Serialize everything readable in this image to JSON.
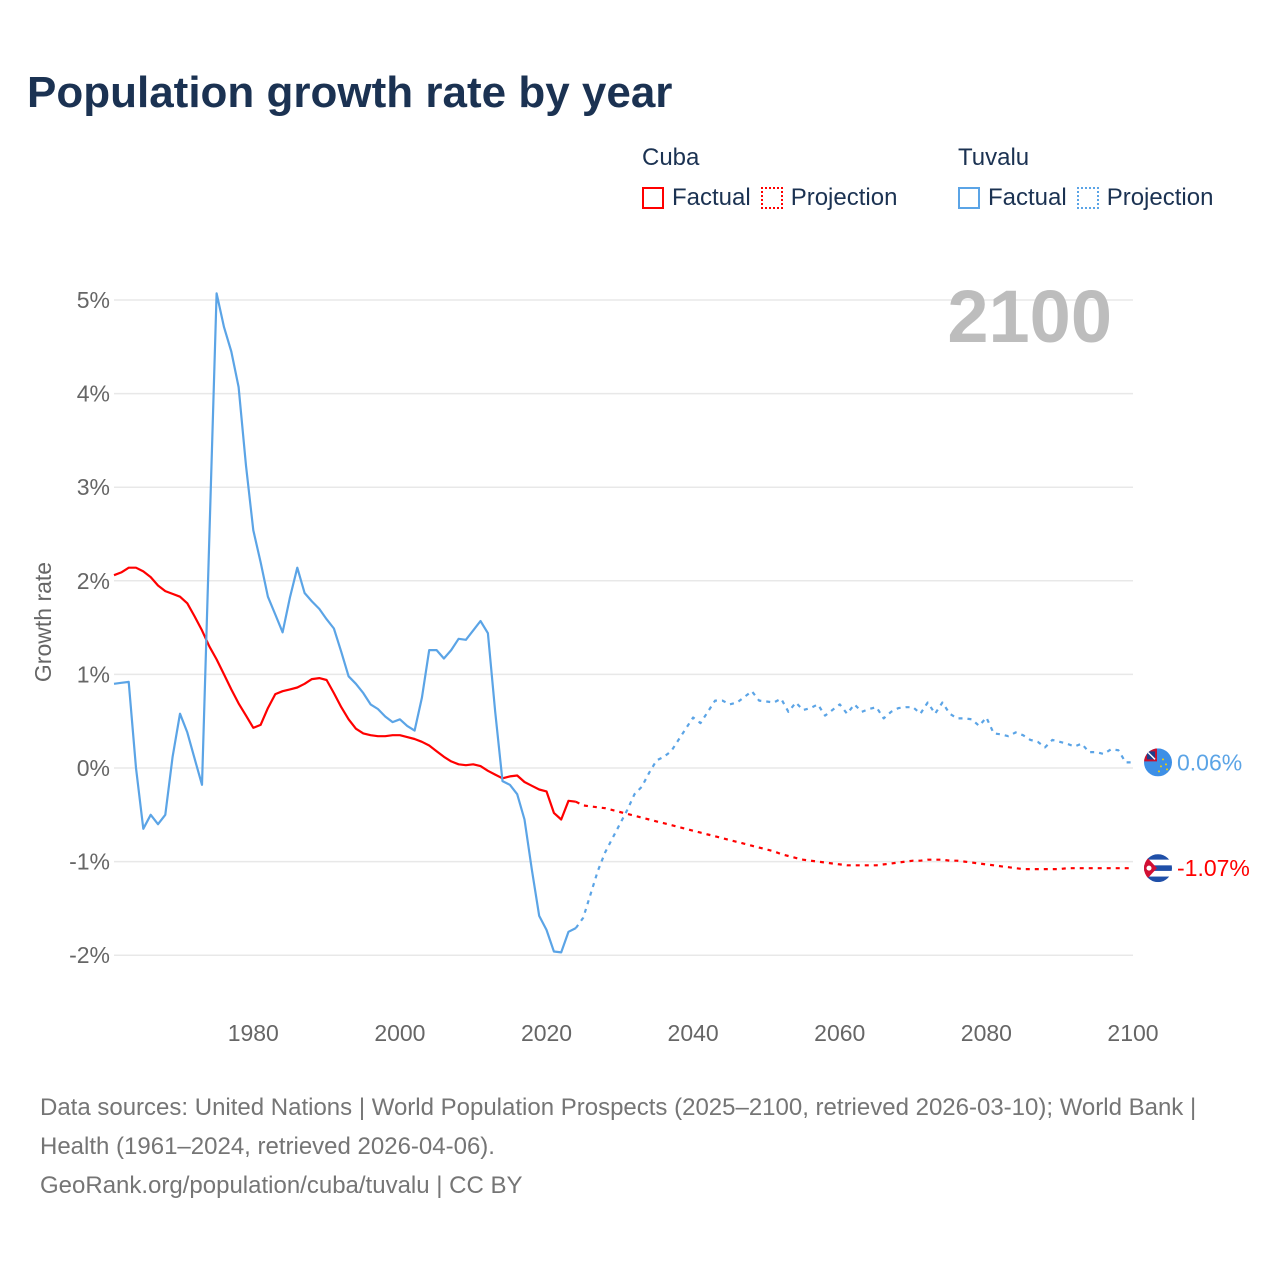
{
  "title": "Population growth rate by year",
  "legend": {
    "groups": [
      {
        "name": "Cuba",
        "color": "#ff0000",
        "items": [
          "Factual",
          "Projection"
        ]
      },
      {
        "name": "Tuvalu",
        "color": "#5ba4e6",
        "items": [
          "Factual",
          "Projection"
        ]
      }
    ]
  },
  "year_watermark": "2100",
  "footer": {
    "sources": "Data sources: United Nations | World Population Prospects (2025–2100, retrieved 2026-03-10); World Bank | Health (1961–2024, retrieved 2026-04-06).",
    "credit": "GeoRank.org/population/cuba/tuvalu | CC BY"
  },
  "chart_data": {
    "type": "line",
    "title": "Population growth rate by year",
    "xlabel": "",
    "ylabel": "Growth rate",
    "xlim": [
      1961,
      2100
    ],
    "ylim": [
      -2.5,
      5.3
    ],
    "x_ticks": [
      1980,
      2000,
      2020,
      2040,
      2060,
      2080,
      2100
    ],
    "y_ticks": [
      -2,
      -1,
      0,
      1,
      2,
      3,
      4,
      5
    ],
    "y_tick_labels": [
      "-2%",
      "-1%",
      "0%",
      "1%",
      "2%",
      "3%",
      "4%",
      "5%"
    ],
    "grid": true,
    "legend_position": "top-right",
    "series": [
      {
        "name": "Cuba",
        "kind": "Factual",
        "color": "#ff0000",
        "style": "solid",
        "x_start": 1961,
        "values": [
          2.06,
          2.09,
          2.14,
          2.14,
          2.1,
          2.04,
          1.95,
          1.89,
          1.86,
          1.83,
          1.76,
          1.62,
          1.47,
          1.3,
          1.16,
          1.0,
          0.84,
          0.69,
          0.56,
          0.43,
          0.46,
          0.64,
          0.79,
          0.82,
          0.84,
          0.86,
          0.9,
          0.95,
          0.96,
          0.94,
          0.8,
          0.65,
          0.52,
          0.42,
          0.37,
          0.35,
          0.34,
          0.34,
          0.35,
          0.35,
          0.33,
          0.31,
          0.28,
          0.24,
          0.18,
          0.12,
          0.07,
          0.04,
          0.03,
          0.04,
          0.02,
          -0.03,
          -0.07,
          -0.11,
          -0.09,
          -0.08,
          -0.15,
          -0.19,
          -0.23,
          -0.25,
          -0.48,
          -0.55,
          -0.35,
          -0.36
        ]
      },
      {
        "name": "Cuba",
        "kind": "Projection",
        "color": "#ff0000",
        "style": "dotted",
        "x_start": 2025,
        "values": [
          -0.4,
          -0.41,
          -0.42,
          -0.43,
          -0.45,
          -0.47,
          -0.49,
          -0.51,
          -0.53,
          -0.55,
          -0.57,
          -0.59,
          -0.61,
          -0.63,
          -0.65,
          -0.67,
          -0.69,
          -0.71,
          -0.73,
          -0.75,
          -0.77,
          -0.79,
          -0.81,
          -0.83,
          -0.85,
          -0.87,
          -0.89,
          -0.92,
          -0.94,
          -0.96,
          -0.98,
          -0.99,
          -1.0,
          -1.01,
          -1.02,
          -1.03,
          -1.04,
          -1.04,
          -1.04,
          -1.04,
          -1.04,
          -1.03,
          -1.02,
          -1.01,
          -1.0,
          -0.99,
          -0.99,
          -0.98,
          -0.98,
          -0.98,
          -0.99,
          -0.99,
          -1.0,
          -1.01,
          -1.02,
          -1.03,
          -1.04,
          -1.05,
          -1.06,
          -1.07,
          -1.08,
          -1.08,
          -1.08,
          -1.08,
          -1.08,
          -1.08,
          -1.07,
          -1.07,
          -1.07,
          -1.07,
          -1.07,
          -1.07,
          -1.07,
          -1.07,
          -1.07,
          -1.07
        ]
      },
      {
        "name": "Tuvalu",
        "kind": "Factual",
        "color": "#5ba4e6",
        "style": "solid",
        "x_start": 1961,
        "values": [
          0.9,
          0.91,
          0.92,
          0.0,
          -0.65,
          -0.5,
          -0.6,
          -0.5,
          0.12,
          0.58,
          0.38,
          0.1,
          -0.18,
          2.45,
          5.07,
          4.71,
          4.45,
          4.07,
          3.23,
          2.54,
          2.2,
          1.83,
          1.64,
          1.45,
          1.82,
          2.14,
          1.87,
          1.78,
          1.7,
          1.59,
          1.49,
          1.24,
          0.98,
          0.9,
          0.8,
          0.68,
          0.63,
          0.55,
          0.49,
          0.52,
          0.45,
          0.4,
          0.75,
          1.26,
          1.26,
          1.17,
          1.26,
          1.38,
          1.37,
          1.47,
          1.57,
          1.44,
          0.6,
          -0.14,
          -0.18,
          -0.28,
          -0.55,
          -1.09,
          -1.58,
          -1.73,
          -1.96,
          -1.97,
          -1.75,
          -1.71
        ]
      },
      {
        "name": "Tuvalu",
        "kind": "Projection",
        "color": "#5ba4e6",
        "style": "dotted",
        "x_start": 2025,
        "values": [
          -1.6,
          -1.35,
          -1.1,
          -0.9,
          -0.75,
          -0.6,
          -0.45,
          -0.28,
          -0.2,
          -0.05,
          0.08,
          0.12,
          0.18,
          0.3,
          0.42,
          0.54,
          0.48,
          0.6,
          0.72,
          0.72,
          0.68,
          0.7,
          0.76,
          0.82,
          0.72,
          0.71,
          0.7,
          0.74,
          0.6,
          0.7,
          0.62,
          0.64,
          0.68,
          0.56,
          0.62,
          0.68,
          0.58,
          0.68,
          0.6,
          0.63,
          0.65,
          0.53,
          0.6,
          0.64,
          0.65,
          0.65,
          0.58,
          0.7,
          0.58,
          0.7,
          0.58,
          0.53,
          0.53,
          0.52,
          0.45,
          0.54,
          0.37,
          0.36,
          0.34,
          0.38,
          0.35,
          0.3,
          0.28,
          0.22,
          0.3,
          0.28,
          0.26,
          0.23,
          0.26,
          0.17,
          0.17,
          0.15,
          0.2,
          0.19,
          0.06,
          0.06
        ]
      }
    ],
    "end_labels": [
      {
        "country": "Tuvalu",
        "text": "0.06%",
        "value": 0.06,
        "color": "#5ba4e6",
        "icon": "tuvalu-flag-icon"
      },
      {
        "country": "Cuba",
        "text": "-1.07%",
        "value": -1.07,
        "color": "#ff0000",
        "icon": "cuba-flag-icon"
      }
    ]
  }
}
